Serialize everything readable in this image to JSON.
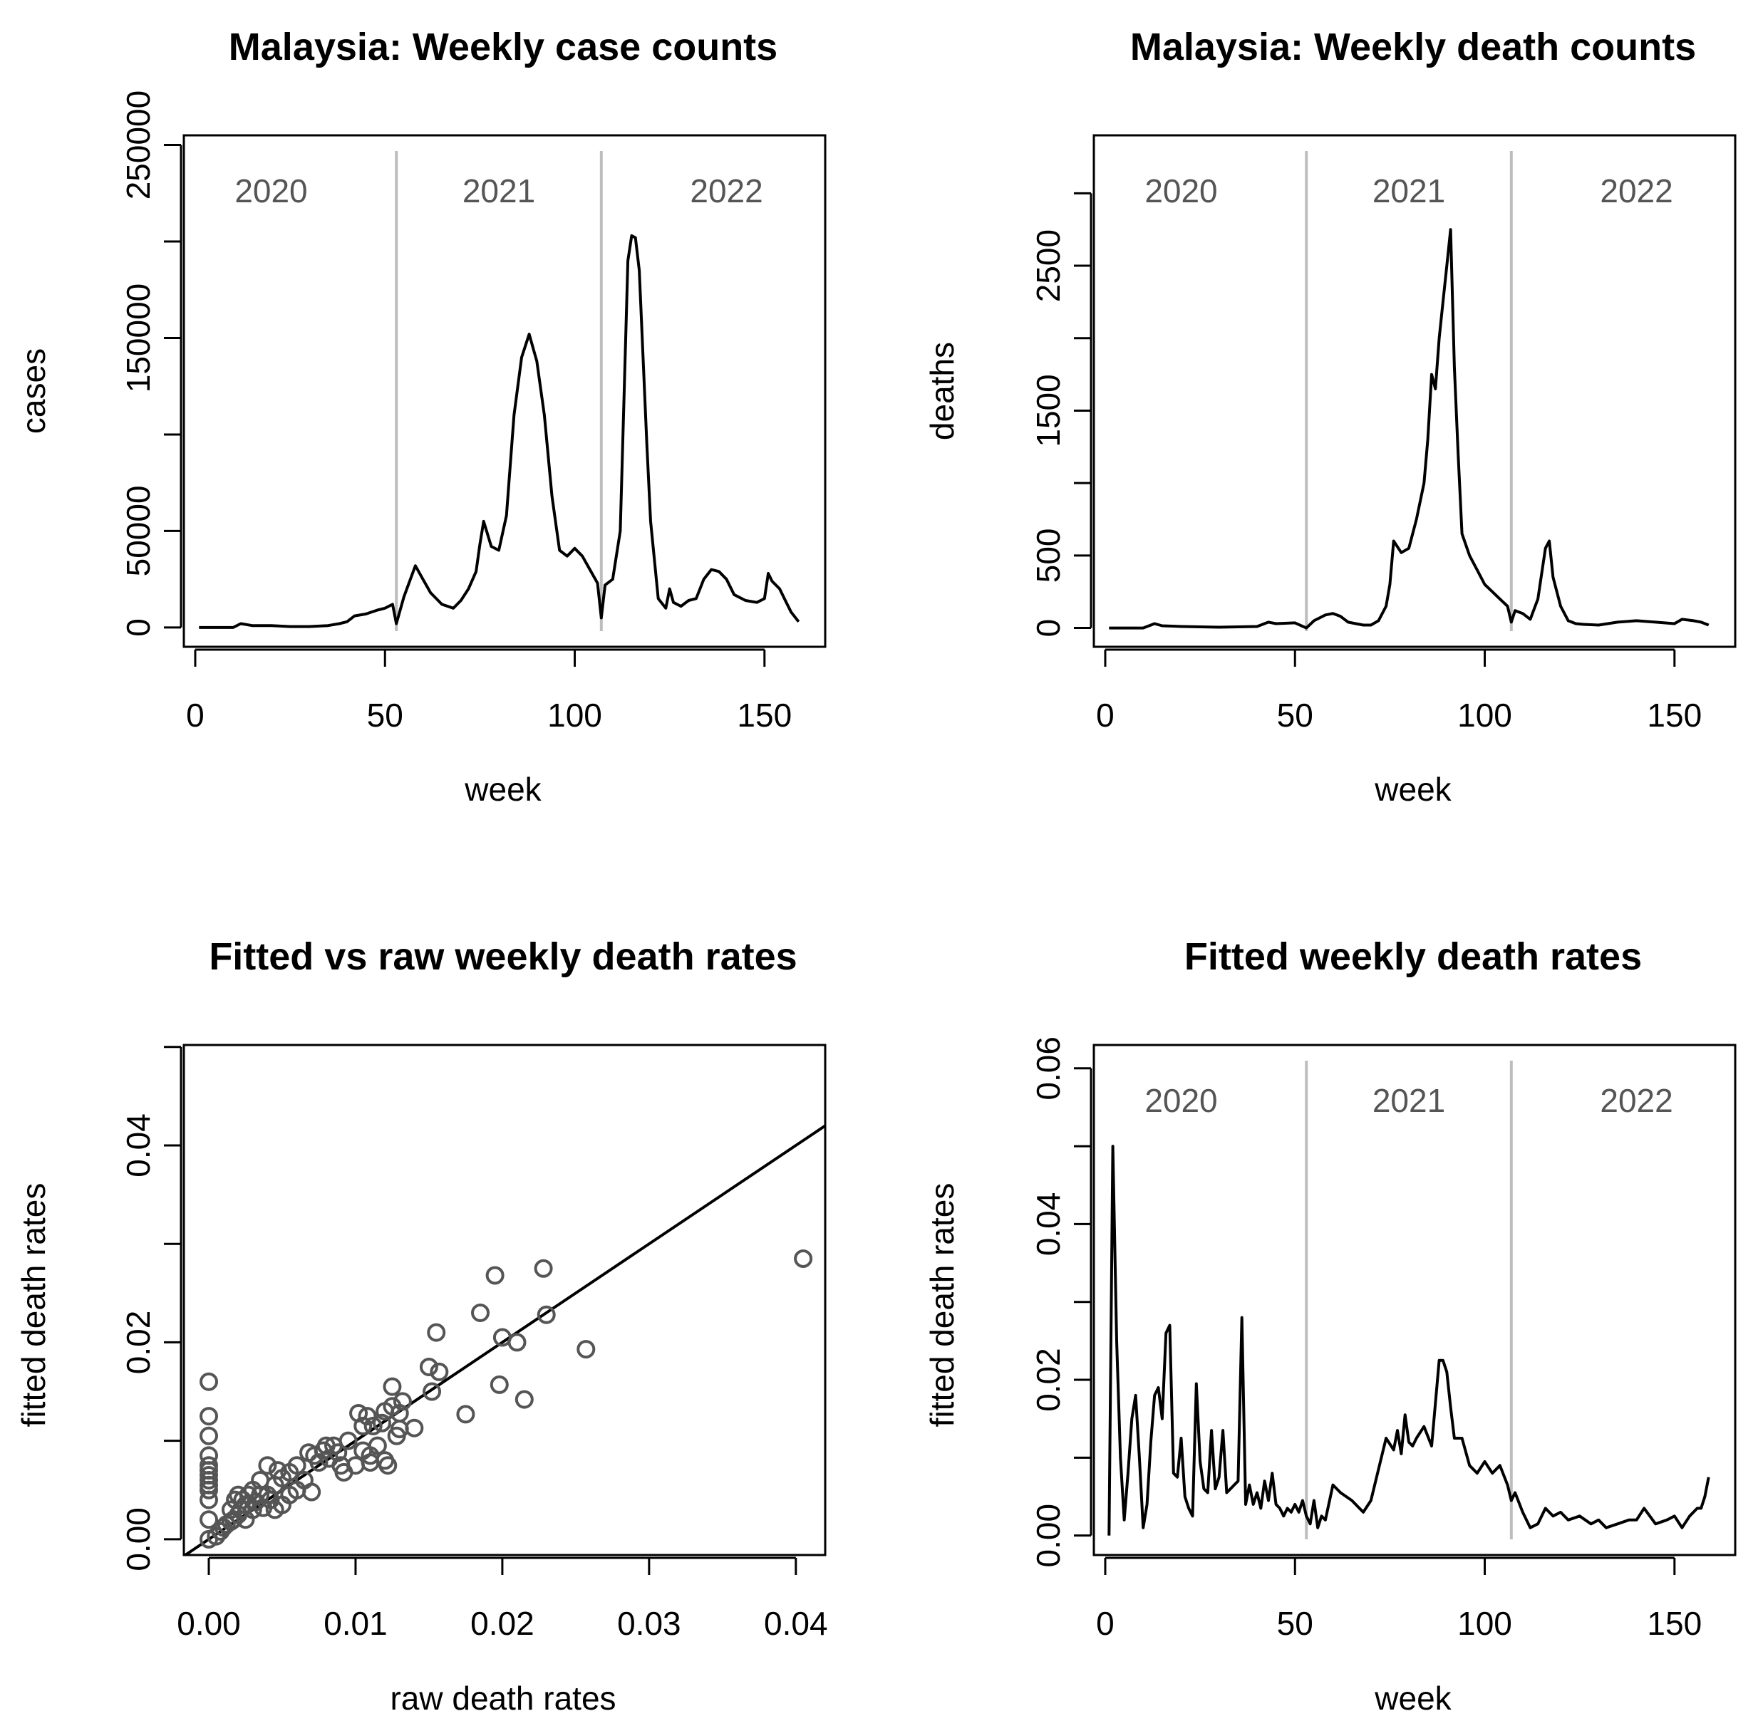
{
  "chart_data": [
    {
      "type": "line",
      "title": "Malaysia: Weekly case counts",
      "xlabel": "week",
      "ylabel": "cases",
      "xlim": [
        -3,
        166
      ],
      "ylim": [
        -10000,
        255000
      ],
      "xticks": [
        0,
        50,
        100,
        150
      ],
      "yticks": [
        0,
        50000,
        100000,
        150000,
        200000,
        250000
      ],
      "ytick_labels": [
        "0",
        "50000",
        "",
        "150000",
        "",
        "250000"
      ],
      "year_dividers": [
        53,
        107
      ],
      "year_labels": [
        {
          "text": "2020",
          "x": 20
        },
        {
          "text": "2021",
          "x": 80
        },
        {
          "text": "2022",
          "x": 140
        }
      ],
      "series": [
        {
          "x": [
            1,
            10,
            12,
            15,
            20,
            25,
            30,
            35,
            38,
            40,
            42,
            45,
            48,
            50,
            52,
            53,
            55,
            58,
            60,
            62,
            65,
            68,
            70,
            72,
            74,
            75,
            76,
            78,
            80,
            82,
            84,
            86,
            88,
            89,
            90,
            92,
            94,
            96,
            98,
            100,
            102,
            104,
            106,
            107,
            108,
            110,
            112,
            114,
            115,
            116,
            117,
            118,
            119,
            120,
            122,
            124,
            125,
            126,
            128,
            130,
            132,
            134,
            136,
            138,
            140,
            142,
            145,
            148,
            150,
            151,
            152,
            154,
            156,
            157,
            159
          ],
          "y": [
            0,
            0,
            2000,
            1000,
            1000,
            500,
            500,
            1000,
            2000,
            3000,
            6000,
            7000,
            9000,
            10000,
            12000,
            2000,
            16000,
            32000,
            25000,
            18000,
            12000,
            10000,
            14000,
            20000,
            29000,
            43000,
            55000,
            42000,
            40000,
            58000,
            110000,
            140000,
            152000,
            145000,
            138000,
            110000,
            68000,
            40000,
            37000,
            41000,
            37000,
            30000,
            23000,
            5000,
            22000,
            25000,
            50000,
            190000,
            203000,
            202000,
            185000,
            140000,
            95000,
            55000,
            15000,
            10000,
            20000,
            13000,
            11000,
            14000,
            15000,
            25000,
            30000,
            29000,
            25000,
            17000,
            14000,
            13000,
            15000,
            28000,
            24000,
            20000,
            12000,
            8000,
            3000
          ]
        }
      ]
    },
    {
      "type": "line",
      "title": "Malaysia: Weekly death counts",
      "xlabel": "week",
      "ylabel": "deaths",
      "xlim": [
        -3,
        166
      ],
      "ylim": [
        -130,
        3400
      ],
      "xticks": [
        0,
        50,
        100,
        150
      ],
      "yticks": [
        0,
        500,
        1000,
        1500,
        2000,
        2500,
        3000
      ],
      "ytick_labels": [
        "0",
        "500",
        "",
        "1500",
        "",
        "2500",
        ""
      ],
      "year_dividers": [
        53,
        107
      ],
      "year_labels": [
        {
          "text": "2020",
          "x": 20
        },
        {
          "text": "2021",
          "x": 80
        },
        {
          "text": "2022",
          "x": 140
        }
      ],
      "series": [
        {
          "x": [
            1,
            10,
            13,
            15,
            20,
            30,
            40,
            43,
            45,
            50,
            53,
            55,
            58,
            60,
            62,
            64,
            66,
            68,
            70,
            72,
            74,
            75,
            76,
            78,
            80,
            82,
            84,
            85,
            86,
            87,
            88,
            89,
            90,
            91,
            92,
            93,
            94,
            96,
            98,
            100,
            102,
            104,
            106,
            107,
            108,
            110,
            112,
            114,
            116,
            117,
            118,
            120,
            122,
            124,
            126,
            130,
            135,
            140,
            145,
            150,
            152,
            155,
            157,
            159
          ],
          "y": [
            0,
            0,
            30,
            15,
            10,
            5,
            10,
            40,
            30,
            35,
            0,
            50,
            90,
            100,
            80,
            40,
            30,
            20,
            20,
            50,
            150,
            300,
            600,
            520,
            550,
            750,
            1000,
            1300,
            1750,
            1650,
            2000,
            2250,
            2500,
            2750,
            1800,
            1200,
            650,
            500,
            400,
            300,
            250,
            200,
            150,
            40,
            120,
            100,
            60,
            200,
            550,
            600,
            350,
            150,
            50,
            30,
            25,
            20,
            40,
            50,
            40,
            30,
            60,
            50,
            40,
            20
          ]
        }
      ]
    },
    {
      "type": "scatter",
      "title": "Fitted vs raw weekly death rates",
      "xlabel": "raw death rates",
      "ylabel": "fitted death rates",
      "xlim": [
        -0.0017,
        0.042
      ],
      "ylim": [
        -0.0016,
        0.0502
      ],
      "xticks": [
        0,
        0.01,
        0.02,
        0.03,
        0.04
      ],
      "xtick_labels": [
        "0.00",
        "0.01",
        "0.02",
        "0.03",
        "0.04"
      ],
      "yticks": [
        0,
        0.01,
        0.02,
        0.03,
        0.04,
        0.05
      ],
      "ytick_labels": [
        "0.00",
        "",
        "0.02",
        "",
        "0.04",
        ""
      ],
      "fit_line": {
        "slope": 1,
        "intercept": 0
      },
      "points": [
        [
          0,
          0.016
        ],
        [
          0,
          0.0125
        ],
        [
          0,
          0.0105
        ],
        [
          0,
          0.0085
        ],
        [
          0,
          0.0075
        ],
        [
          0,
          0.007
        ],
        [
          0,
          0.0065
        ],
        [
          0,
          0.006
        ],
        [
          0,
          0.0055
        ],
        [
          0,
          0.005
        ],
        [
          0,
          0.004
        ],
        [
          0,
          0.002
        ],
        [
          0,
          0.0
        ],
        [
          0.0005,
          0.0003
        ],
        [
          0.0008,
          0.0008
        ],
        [
          0.001,
          0.0012
        ],
        [
          0.0012,
          0.0015
        ],
        [
          0.0015,
          0.0018
        ],
        [
          0.0015,
          0.003
        ],
        [
          0.0017,
          0.002
        ],
        [
          0.0018,
          0.004
        ],
        [
          0.002,
          0.0025
        ],
        [
          0.002,
          0.0045
        ],
        [
          0.0022,
          0.003
        ],
        [
          0.0023,
          0.004
        ],
        [
          0.0025,
          0.002
        ],
        [
          0.0025,
          0.0035
        ],
        [
          0.0027,
          0.0045
        ],
        [
          0.003,
          0.003
        ],
        [
          0.003,
          0.005
        ],
        [
          0.0032,
          0.0038
        ],
        [
          0.0035,
          0.0045
        ],
        [
          0.0035,
          0.006
        ],
        [
          0.0037,
          0.0032
        ],
        [
          0.004,
          0.0045
        ],
        [
          0.004,
          0.0075
        ],
        [
          0.0042,
          0.004
        ],
        [
          0.0045,
          0.003
        ],
        [
          0.0045,
          0.0055
        ],
        [
          0.0047,
          0.007
        ],
        [
          0.005,
          0.0035
        ],
        [
          0.005,
          0.0062
        ],
        [
          0.0055,
          0.0045
        ],
        [
          0.0055,
          0.0068
        ],
        [
          0.006,
          0.005
        ],
        [
          0.006,
          0.0075
        ],
        [
          0.0065,
          0.006
        ],
        [
          0.0068,
          0.0088
        ],
        [
          0.007,
          0.0048
        ],
        [
          0.0072,
          0.0085
        ],
        [
          0.0075,
          0.0078
        ],
        [
          0.0078,
          0.009
        ],
        [
          0.008,
          0.0095
        ],
        [
          0.0082,
          0.0082
        ],
        [
          0.0085,
          0.0095
        ],
        [
          0.0088,
          0.0088
        ],
        [
          0.009,
          0.0075
        ],
        [
          0.0092,
          0.0068
        ],
        [
          0.0095,
          0.01
        ],
        [
          0.01,
          0.0075
        ],
        [
          0.0102,
          0.0128
        ],
        [
          0.0105,
          0.009
        ],
        [
          0.0105,
          0.0115
        ],
        [
          0.0108,
          0.0125
        ],
        [
          0.011,
          0.0085
        ],
        [
          0.011,
          0.0078
        ],
        [
          0.0112,
          0.0115
        ],
        [
          0.0115,
          0.0095
        ],
        [
          0.0118,
          0.0118
        ],
        [
          0.012,
          0.013
        ],
        [
          0.012,
          0.008
        ],
        [
          0.0122,
          0.0075
        ],
        [
          0.0125,
          0.0135
        ],
        [
          0.0125,
          0.0155
        ],
        [
          0.0128,
          0.0105
        ],
        [
          0.013,
          0.0128
        ],
        [
          0.013,
          0.0112
        ],
        [
          0.0132,
          0.014
        ],
        [
          0.014,
          0.0113
        ],
        [
          0.015,
          0.0175
        ],
        [
          0.0152,
          0.015
        ],
        [
          0.0155,
          0.021
        ],
        [
          0.0157,
          0.017
        ],
        [
          0.0175,
          0.0127
        ],
        [
          0.0185,
          0.023
        ],
        [
          0.0195,
          0.0268
        ],
        [
          0.0198,
          0.0157
        ],
        [
          0.02,
          0.0205
        ],
        [
          0.021,
          0.02
        ],
        [
          0.0215,
          0.0142
        ],
        [
          0.0228,
          0.0275
        ],
        [
          0.023,
          0.0228
        ],
        [
          0.0257,
          0.0193
        ],
        [
          0.0405,
          0.0285
        ]
      ]
    },
    {
      "type": "line",
      "title": "Fitted weekly death rates",
      "xlabel": "week",
      "ylabel": "fitted death rates",
      "xlim": [
        -3,
        166
      ],
      "ylim": [
        -0.0025,
        0.063
      ],
      "xticks": [
        0,
        50,
        100,
        150
      ],
      "yticks": [
        0,
        0.01,
        0.02,
        0.03,
        0.04,
        0.05,
        0.06
      ],
      "ytick_labels": [
        "0.00",
        "",
        "0.02",
        "",
        "0.04",
        "",
        "0.06"
      ],
      "year_dividers": [
        53,
        107
      ],
      "year_labels": [
        {
          "text": "2020",
          "x": 20
        },
        {
          "text": "2021",
          "x": 80
        },
        {
          "text": "2022",
          "x": 140
        }
      ],
      "series": [
        {
          "x": [
            1,
            2,
            3,
            4,
            5,
            6,
            7,
            8,
            9,
            10,
            11,
            12,
            13,
            14,
            15,
            16,
            17,
            18,
            19,
            20,
            21,
            22,
            23,
            24,
            25,
            26,
            27,
            28,
            29,
            30,
            31,
            32,
            33,
            34,
            35,
            36,
            37,
            38,
            39,
            40,
            41,
            42,
            43,
            44,
            45,
            46,
            47,
            48,
            49,
            50,
            51,
            52,
            53,
            54,
            55,
            56,
            57,
            58,
            60,
            62,
            65,
            68,
            70,
            72,
            74,
            76,
            77,
            78,
            79,
            80,
            81,
            82,
            84,
            86,
            88,
            89,
            90,
            91,
            92,
            94,
            96,
            98,
            100,
            102,
            104,
            106,
            107,
            108,
            110,
            112,
            114,
            116,
            118,
            120,
            122,
            125,
            128,
            130,
            132,
            135,
            138,
            140,
            142,
            145,
            148,
            150,
            152,
            154,
            156,
            157,
            158,
            159
          ],
          "y": [
            0,
            0.05,
            0.025,
            0.01,
            0.002,
            0.008,
            0.015,
            0.018,
            0.01,
            0.001,
            0.004,
            0.012,
            0.018,
            0.019,
            0.015,
            0.026,
            0.027,
            0.008,
            0.0075,
            0.0125,
            0.005,
            0.0035,
            0.0025,
            0.0195,
            0.0095,
            0.006,
            0.0055,
            0.0135,
            0.006,
            0.0075,
            0.0135,
            0.0055,
            0.006,
            0.0065,
            0.007,
            0.028,
            0.004,
            0.0065,
            0.004,
            0.0055,
            0.0035,
            0.007,
            0.0045,
            0.008,
            0.004,
            0.0035,
            0.0025,
            0.0035,
            0.003,
            0.004,
            0.003,
            0.0045,
            0.0025,
            0.0015,
            0.0045,
            0.001,
            0.0025,
            0.002,
            0.0065,
            0.0055,
            0.0045,
            0.003,
            0.0045,
            0.0085,
            0.0125,
            0.011,
            0.0135,
            0.0105,
            0.0155,
            0.012,
            0.0115,
            0.0125,
            0.014,
            0.0115,
            0.0225,
            0.0225,
            0.021,
            0.0165,
            0.0125,
            0.0125,
            0.009,
            0.008,
            0.0095,
            0.008,
            0.009,
            0.0065,
            0.0045,
            0.0055,
            0.003,
            0.001,
            0.0015,
            0.0035,
            0.0025,
            0.003,
            0.002,
            0.0025,
            0.0015,
            0.002,
            0.001,
            0.0015,
            0.002,
            0.002,
            0.0035,
            0.0015,
            0.002,
            0.0025,
            0.001,
            0.0025,
            0.0035,
            0.0035,
            0.005,
            0.0075
          ]
        }
      ]
    }
  ]
}
